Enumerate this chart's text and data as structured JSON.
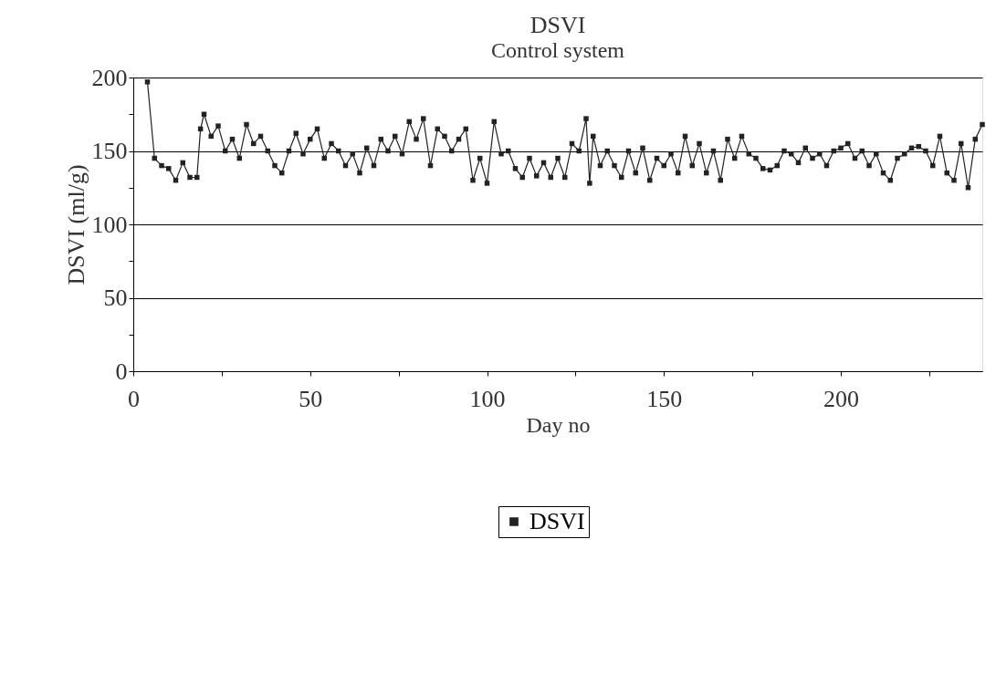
{
  "chart_data": {
    "type": "line",
    "title": "DSVI",
    "subtitle": "Control system",
    "xlabel": "Day no",
    "ylabel": "DSVI (ml/g)",
    "x": [
      4,
      6,
      8,
      10,
      12,
      14,
      16,
      18,
      19,
      20,
      22,
      24,
      26,
      28,
      30,
      32,
      34,
      36,
      38,
      40,
      42,
      44,
      46,
      48,
      50,
      52,
      54,
      56,
      58,
      60,
      62,
      64,
      66,
      68,
      70,
      72,
      74,
      76,
      78,
      80,
      82,
      84,
      86,
      88,
      90,
      92,
      94,
      96,
      98,
      100,
      102,
      104,
      106,
      108,
      110,
      112,
      114,
      116,
      118,
      120,
      122,
      124,
      126,
      128,
      129,
      130,
      132,
      134,
      136,
      138,
      140,
      142,
      144,
      146,
      148,
      150,
      152,
      154,
      156,
      158,
      160,
      162,
      164,
      166,
      168,
      170,
      172,
      174,
      176,
      178,
      180,
      182,
      184,
      186,
      188,
      190,
      192,
      194,
      196,
      198,
      200,
      202,
      204,
      206,
      208,
      210,
      212,
      214,
      216,
      218,
      220,
      222,
      224,
      226,
      228,
      230,
      232,
      234,
      236,
      238,
      240
    ],
    "series": [
      {
        "name": "DSVI",
        "color": "#222222",
        "values": [
          197,
          145,
          140,
          138,
          130,
          142,
          132,
          132,
          165,
          175,
          160,
          167,
          150,
          158,
          145,
          168,
          155,
          160,
          150,
          140,
          135,
          150,
          162,
          148,
          158,
          165,
          145,
          155,
          150,
          140,
          148,
          135,
          152,
          140,
          158,
          150,
          160,
          148,
          170,
          158,
          172,
          140,
          165,
          160,
          150,
          158,
          165,
          130,
          145,
          128,
          170,
          148,
          150,
          138,
          132,
          145,
          133,
          142,
          132,
          145,
          132,
          155,
          150,
          172,
          128,
          160,
          140,
          150,
          140,
          132,
          150,
          135,
          152,
          130,
          145,
          140,
          148,
          135,
          160,
          140,
          155,
          135,
          150,
          130,
          158,
          145,
          160,
          148,
          145,
          138,
          137,
          140,
          150,
          148,
          142,
          152,
          145,
          148,
          140,
          150,
          152,
          155,
          145,
          150,
          140,
          148,
          135,
          130,
          145,
          148,
          152,
          153,
          150,
          140,
          160,
          135,
          130,
          155,
          125,
          158,
          168
        ]
      }
    ],
    "xlim": [
      0,
      240
    ],
    "xticks": [
      0,
      {
        "value": 25,
        "label": null
      },
      50,
      {
        "value": 75,
        "label": null
      },
      100,
      {
        "value": 125,
        "label": null
      },
      150,
      {
        "value": 175,
        "label": null
      },
      200,
      {
        "value": 225,
        "label": null
      }
    ],
    "ylim": [
      0,
      200
    ],
    "yticks": [
      0,
      {
        "value": 25,
        "label": null
      },
      50,
      {
        "value": 75,
        "label": null
      },
      100,
      {
        "value": 125,
        "label": null
      },
      150,
      {
        "value": 175,
        "label": null
      },
      200
    ],
    "grid": "y",
    "legend": "bottom",
    "marker": "square",
    "line_style": "solid"
  }
}
